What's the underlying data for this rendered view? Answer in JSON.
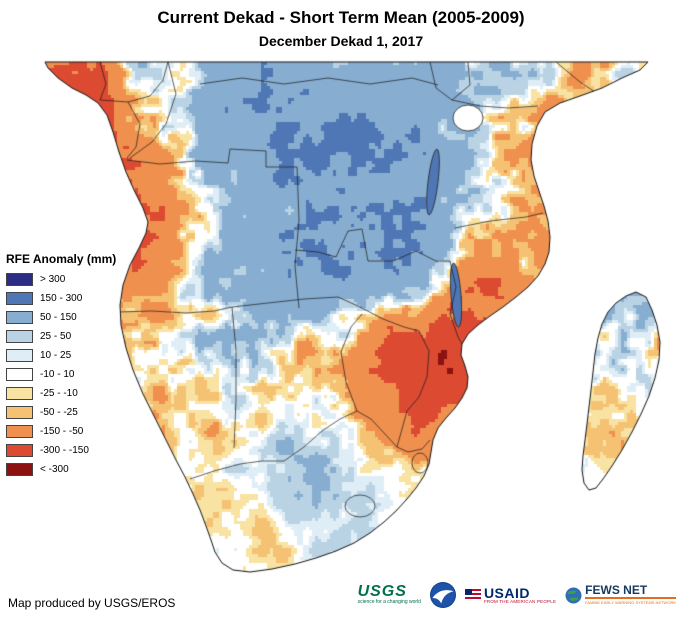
{
  "header": {
    "title": "Current Dekad - Short Term Mean (2005-2009)",
    "subtitle": "December Dekad 1, 2017"
  },
  "legend": {
    "title": "RFE Anomaly (mm)",
    "items": [
      {
        "label": "> 300",
        "color": "#2b2d84"
      },
      {
        "label": "150 - 300",
        "color": "#4f77b5"
      },
      {
        "label": "50 - 150",
        "color": "#87add0"
      },
      {
        "label": "25 - 50",
        "color": "#b9d3e4"
      },
      {
        "label": "10 - 25",
        "color": "#dfeef6"
      },
      {
        "label": "-10 - 10",
        "color": "#ffffff"
      },
      {
        "label": "-25 - -10",
        "color": "#f8e3a3"
      },
      {
        "label": "-50 - -25",
        "color": "#f5c274"
      },
      {
        "label": "-150 - -50",
        "color": "#f0904e"
      },
      {
        "label": "-300 - -150",
        "color": "#dc4a32"
      },
      {
        "label": "< -300",
        "color": "#8c1212"
      }
    ]
  },
  "footer": {
    "credit": "Map produced by USGS/EROS"
  },
  "logos": {
    "usgs": {
      "name": "USGS",
      "tagline": "science for a changing world",
      "color": "#00704a"
    },
    "noaa": {
      "color": "#15418c"
    },
    "usaid": {
      "name": "USAID",
      "tagline": "FROM THE AMERICAN PEOPLE",
      "color": "#002a6c",
      "accent": "#ba0c2f"
    },
    "fewsnet": {
      "name": "FEWS NET",
      "tagline": "FAMINE EARLY WARNING SYSTEMS NETWORK",
      "color": "#16395f",
      "accent": "#e36f1e"
    }
  }
}
